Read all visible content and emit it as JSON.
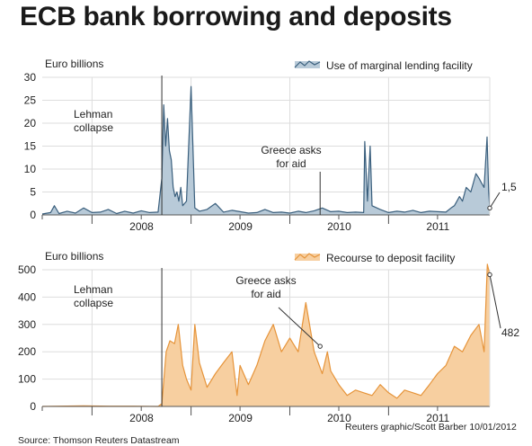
{
  "title": "ECB bank borrowing and deposits",
  "source": "Source: Thomson Reuters Datastream",
  "credit": "Reuters graphic/Scott Barber 10/01/2012",
  "colors": {
    "mlf_line": "#3a5f7d",
    "mlf_fill": "#b8cad8",
    "dep_line": "#e6943a",
    "dep_fill": "#f7cfa0",
    "grid": "#dddddd",
    "axis": "#555555"
  },
  "chart_data": [
    {
      "type": "area",
      "legend": "Use of marginal lending facility",
      "legend_position": "top-right",
      "units_label": "Euro billions",
      "ylim": [
        0,
        30
      ],
      "yticks": [
        0,
        5,
        10,
        15,
        20,
        25,
        30
      ],
      "xlim": [
        "2007-07-01",
        "2012-01-10"
      ],
      "xtick_labels": [
        "2008",
        "2009",
        "2010",
        "2011"
      ],
      "grid": true,
      "series": [
        {
          "x": [
            "2007-07-01",
            "2007-08-01",
            "2007-08-15",
            "2007-09-01",
            "2007-10-01",
            "2007-11-01",
            "2007-12-01",
            "2008-01-01",
            "2008-02-01",
            "2008-03-01",
            "2008-04-01",
            "2008-05-01",
            "2008-06-01",
            "2008-07-01",
            "2008-08-01",
            "2008-09-01",
            "2008-09-15",
            "2008-09-22",
            "2008-09-29",
            "2008-10-06",
            "2008-10-13",
            "2008-10-20",
            "2008-10-27",
            "2008-11-03",
            "2008-11-10",
            "2008-11-17",
            "2008-11-24",
            "2008-12-01",
            "2008-12-15",
            "2009-01-01",
            "2009-01-15",
            "2009-02-01",
            "2009-03-01",
            "2009-04-01",
            "2009-05-01",
            "2009-06-01",
            "2009-07-01",
            "2009-08-01",
            "2009-09-01",
            "2009-10-01",
            "2009-11-01",
            "2009-12-01",
            "2010-01-01",
            "2010-02-01",
            "2010-03-01",
            "2010-04-01",
            "2010-05-01",
            "2010-06-01",
            "2010-07-01",
            "2010-08-01",
            "2010-09-01",
            "2010-10-01",
            "2010-10-05",
            "2010-10-15",
            "2010-10-25",
            "2010-11-01",
            "2010-12-01",
            "2011-01-01",
            "2011-02-01",
            "2011-03-01",
            "2011-04-01",
            "2011-05-01",
            "2011-06-01",
            "2011-07-01",
            "2011-08-01",
            "2011-08-20",
            "2011-09-01",
            "2011-09-20",
            "2011-10-01",
            "2011-10-15",
            "2011-11-01",
            "2011-11-20",
            "2011-12-01",
            "2011-12-10",
            "2011-12-20",
            "2011-12-31",
            "2012-01-06",
            "2012-01-10"
          ],
          "y": [
            0.2,
            0.5,
            2,
            0.3,
            0.8,
            0.4,
            1.5,
            0.5,
            0.6,
            1.2,
            0.3,
            0.8,
            0.4,
            0.9,
            0.5,
            0.6,
            8,
            24,
            15,
            21,
            14,
            12,
            6,
            4,
            5,
            3,
            6,
            2,
            3,
            28,
            1.5,
            0.8,
            1.2,
            2.5,
            0.6,
            1,
            0.7,
            0.4,
            0.5,
            1.2,
            0.5,
            0.6,
            0.4,
            0.8,
            0.5,
            0.9,
            1.5,
            0.7,
            0.8,
            0.5,
            0.6,
            0.5,
            16,
            3,
            15,
            2,
            1.2,
            0.5,
            0.8,
            0.6,
            1,
            0.5,
            0.8,
            0.7,
            0.6,
            1.5,
            2,
            4,
            3,
            6,
            5,
            9,
            8,
            7,
            6,
            17,
            5,
            1.5
          ]
        }
      ],
      "annotations": [
        {
          "text": "Lehman\ncollapse",
          "date": "2008-09-15"
        },
        {
          "text": "Greece asks\nfor aid",
          "date": "2010-04-23"
        },
        {
          "text": "1,5",
          "date": "2012-01-10",
          "value": 1.5
        }
      ]
    },
    {
      "type": "area",
      "legend": "Recourse to deposit facility",
      "legend_position": "top-right",
      "units_label": "Euro billions",
      "ylim": [
        0,
        500
      ],
      "yticks": [
        0,
        100,
        200,
        300,
        400,
        500
      ],
      "xlim": [
        "2007-07-01",
        "2012-01-10"
      ],
      "xtick_labels": [
        "2008",
        "2009",
        "2010",
        "2011"
      ],
      "grid": true,
      "series": [
        {
          "x": [
            "2007-07-01",
            "2007-09-01",
            "2007-12-01",
            "2008-03-01",
            "2008-06-01",
            "2008-09-01",
            "2008-09-15",
            "2008-10-01",
            "2008-10-15",
            "2008-11-01",
            "2008-11-15",
            "2008-12-01",
            "2008-12-15",
            "2009-01-01",
            "2009-01-15",
            "2009-02-01",
            "2009-03-01",
            "2009-04-01",
            "2009-05-01",
            "2009-06-01",
            "2009-06-20",
            "2009-07-01",
            "2009-08-01",
            "2009-09-01",
            "2009-10-01",
            "2009-11-01",
            "2009-12-01",
            "2010-01-01",
            "2010-02-01",
            "2010-03-01",
            "2010-04-01",
            "2010-05-01",
            "2010-05-20",
            "2010-06-01",
            "2010-07-01",
            "2010-08-01",
            "2010-09-01",
            "2010-10-01",
            "2010-11-01",
            "2010-12-01",
            "2011-01-01",
            "2011-02-01",
            "2011-03-01",
            "2011-04-01",
            "2011-05-01",
            "2011-06-01",
            "2011-07-01",
            "2011-08-01",
            "2011-09-01",
            "2011-10-01",
            "2011-11-01",
            "2011-12-01",
            "2011-12-20",
            "2012-01-01",
            "2012-01-10"
          ],
          "y": [
            0,
            1,
            2,
            1,
            1,
            0,
            10,
            200,
            240,
            230,
            300,
            150,
            100,
            60,
            300,
            160,
            70,
            120,
            160,
            200,
            40,
            150,
            80,
            150,
            240,
            300,
            200,
            250,
            200,
            380,
            200,
            120,
            200,
            130,
            80,
            40,
            60,
            50,
            40,
            80,
            50,
            30,
            60,
            50,
            40,
            80,
            120,
            150,
            220,
            200,
            260,
            300,
            200,
            520,
            482
          ]
        }
      ],
      "annotations": [
        {
          "text": "Lehman\ncollapse",
          "date": "2008-09-15"
        },
        {
          "text": "Greece asks\nfor aid",
          "date": "2010-04-23"
        },
        {
          "text": "482",
          "date": "2012-01-10",
          "value": 482
        }
      ]
    }
  ]
}
